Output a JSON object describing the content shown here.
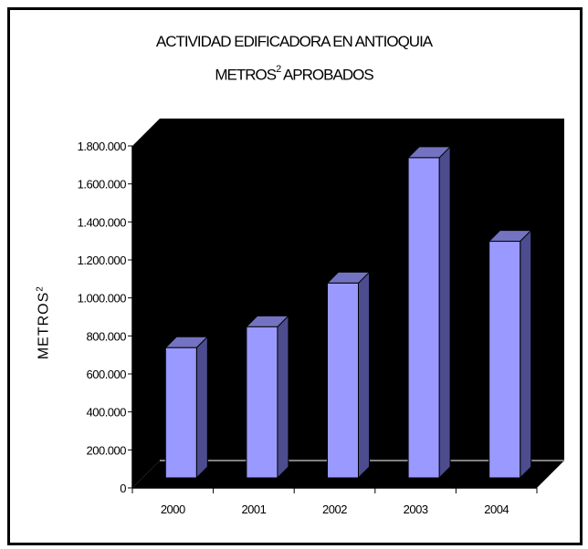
{
  "chart_data": {
    "type": "bar",
    "title_line1": "ACTIVIDAD EDIFICADORA EN ANTIOQUIA",
    "title_line2_main": "METROS",
    "title_line2_sup": "2",
    "title_line2_rest": " APROBADOS",
    "ylabel_main": "METROS",
    "ylabel_sup": "2",
    "categories": [
      "2000",
      "2001",
      "2002",
      "2003",
      "2004"
    ],
    "values": [
      690000,
      800000,
      1030000,
      1690000,
      1250000
    ],
    "ylim": [
      0,
      1800000
    ],
    "ytick_values": [
      0,
      200000,
      400000,
      600000,
      800000,
      1000000,
      1200000,
      1400000,
      1600000,
      1800000
    ],
    "ytick_labels": [
      "0",
      "200.000",
      "400.000",
      "600.000",
      "800.000",
      "1.000.000",
      "1.200.000",
      "1.400.000",
      "1.600.000",
      "1.800.000"
    ],
    "grid": false,
    "colors": {
      "bar_front": "#9999ff",
      "bar_side": "#4c4c8f",
      "bar_top": "#7373c2",
      "wall": "#000000",
      "floor": "#000000",
      "axis": "#000000",
      "floor_edge": "#808080"
    }
  }
}
